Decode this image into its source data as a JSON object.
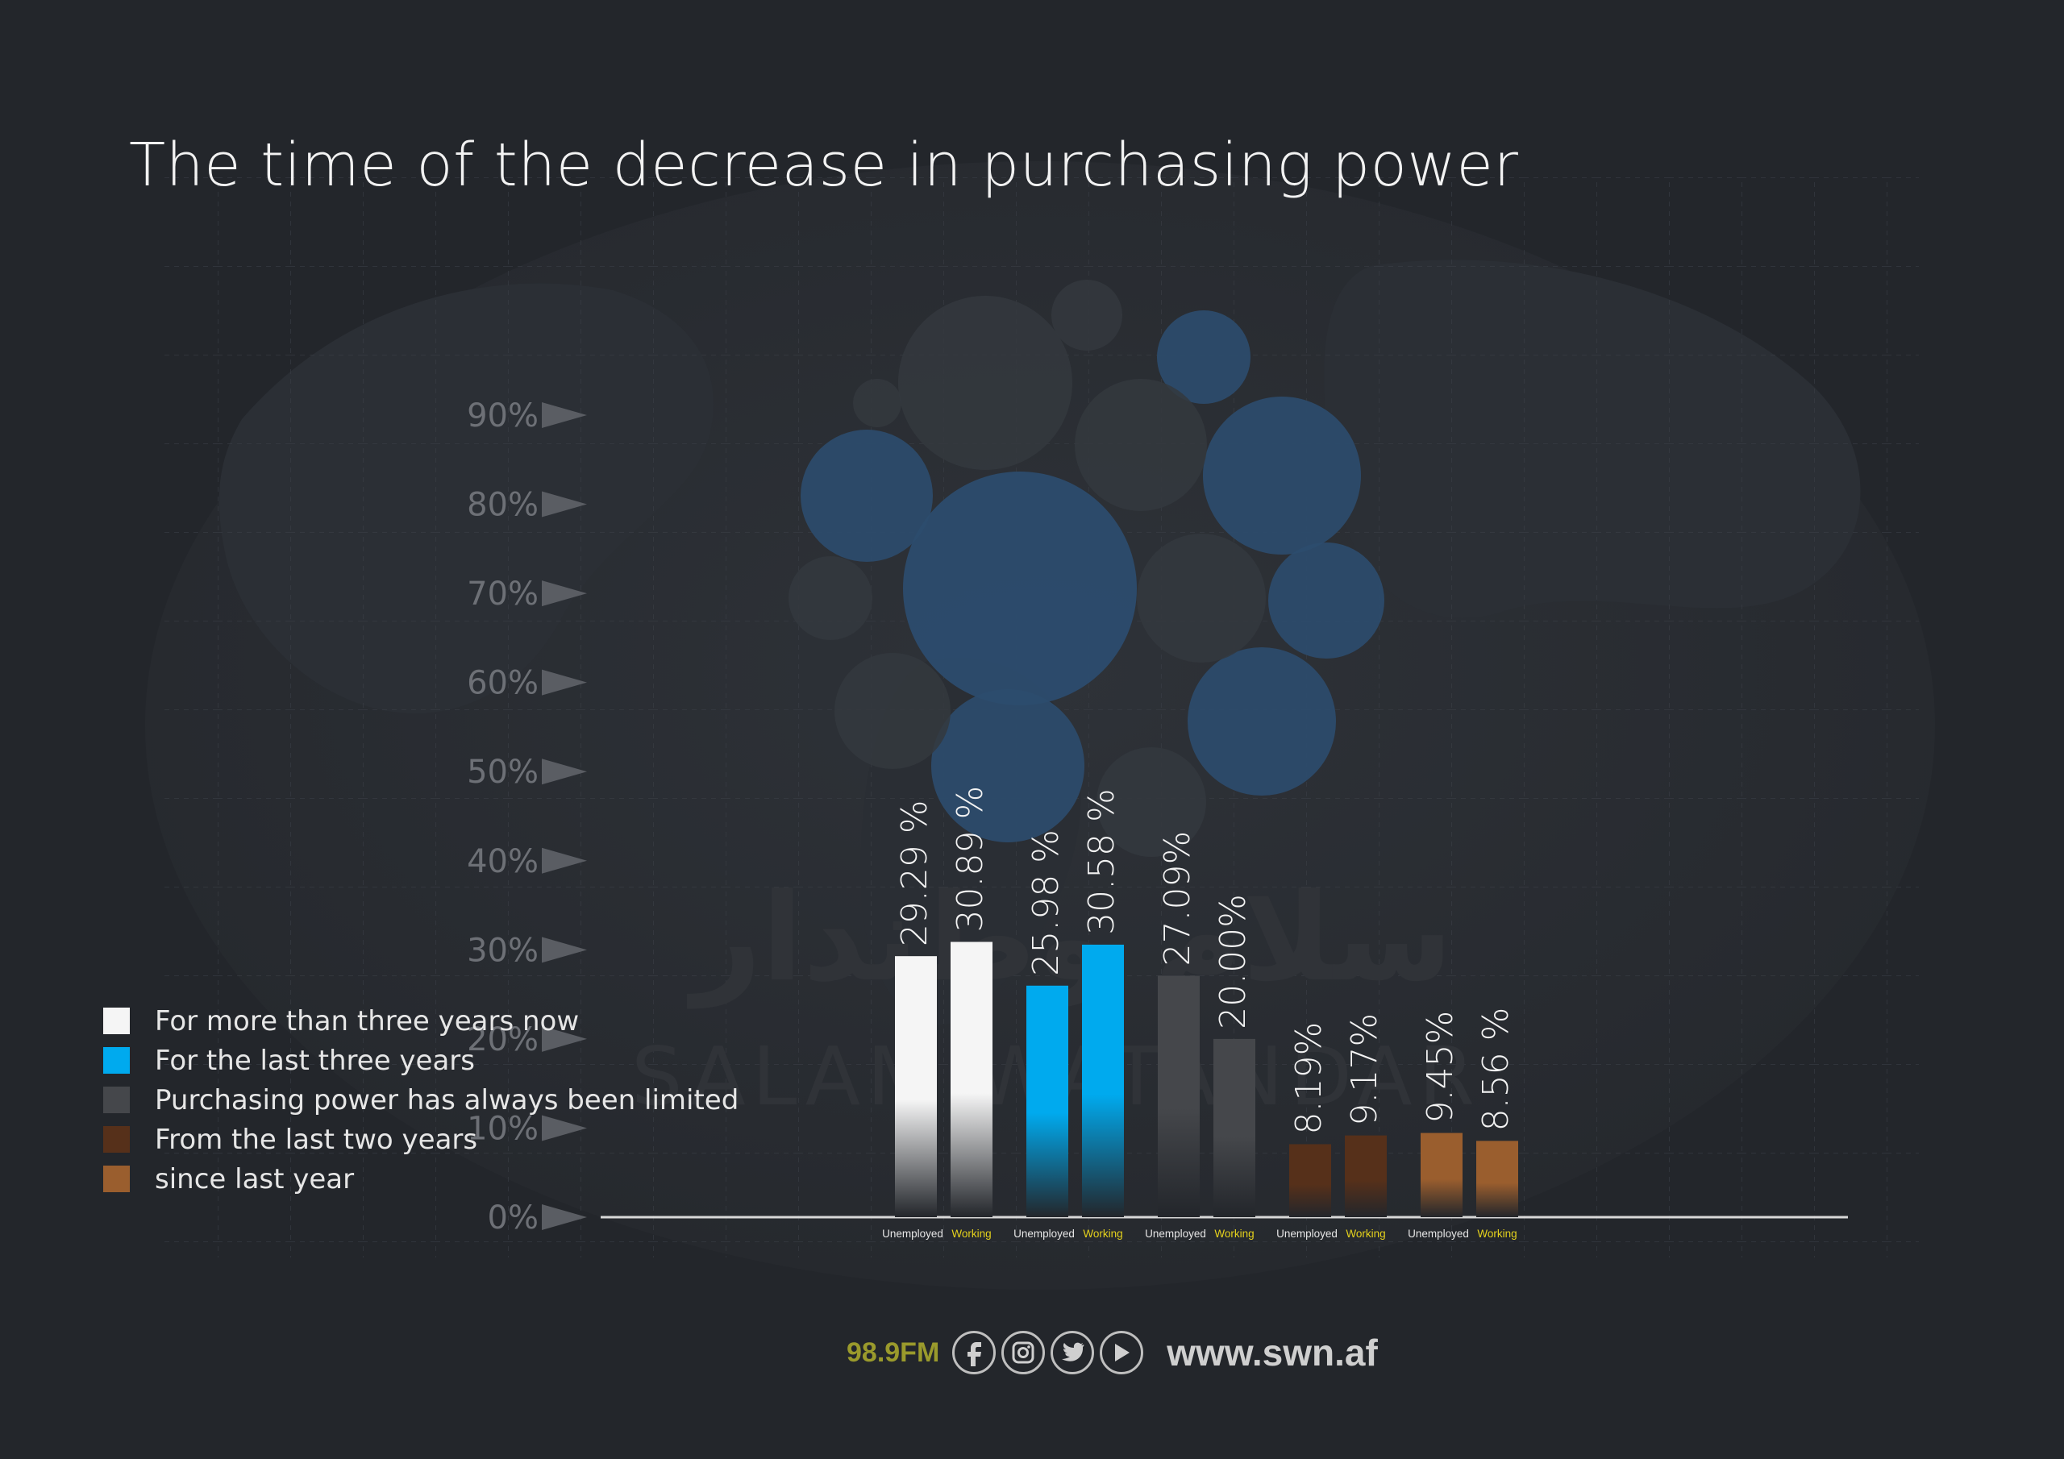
{
  "colors": {
    "background": "#23262b",
    "more_than_three_years": "#f5f5f5",
    "last_three_years": "#00aaee",
    "always_limited": "#45474b",
    "last_two_years": "#56301a",
    "since_last_year": "#9a5e2e",
    "working_label": "#e5d21c"
  },
  "chart_data": {
    "type": "bar",
    "title": "The time of the decrease in purchasing power",
    "ylim": [
      0,
      90
    ],
    "y_ticks": [
      "0%",
      "10%",
      "20%",
      "30%",
      "40%",
      "50%",
      "60%",
      "70%",
      "80%",
      "90%"
    ],
    "groups": [
      "For more than three years now",
      "For the last three years",
      "Purchasing power has always been limited",
      "From the last two years",
      "since last year"
    ],
    "categories": [
      "Unemployed",
      "Working"
    ],
    "series": [
      {
        "name": "For more than three years now",
        "values": [
          29.29,
          30.89
        ],
        "labels": [
          "29.29 %",
          "30.89 %"
        ],
        "color": "#f5f5f5"
      },
      {
        "name": "For the last three years",
        "values": [
          25.98,
          30.58
        ],
        "labels": [
          "25.98 %",
          "30.58 %"
        ],
        "color": "#00aaee"
      },
      {
        "name": "Purchasing power has always been limited",
        "values": [
          27.09,
          20.0
        ],
        "labels": [
          "27.09%",
          "20.00%"
        ],
        "color": "#45474b"
      },
      {
        "name": "From the last two years",
        "values": [
          8.19,
          9.17
        ],
        "labels": [
          "8.19%",
          "9.17%"
        ],
        "color": "#56301a"
      },
      {
        "name": "since last year",
        "values": [
          9.45,
          8.56
        ],
        "labels": [
          "9.45%",
          "8.56 %"
        ],
        "color": "#9a5e2e"
      }
    ],
    "legend_position": "left",
    "grid": true
  },
  "legend": [
    {
      "label": "For more than three years now",
      "color": "#f5f5f5"
    },
    {
      "label": "For the last three years",
      "color": "#00aaee"
    },
    {
      "label": "Purchasing power has always been limited",
      "color": "#45474b"
    },
    {
      "label": "From the last two years",
      "color": "#56301a"
    },
    {
      "label": "since last year",
      "color": "#9a5e2e"
    }
  ],
  "footer": {
    "frequency": "98.9FM",
    "website": "www.swn.af",
    "icons": [
      "facebook-icon",
      "instagram-icon",
      "twitter-icon",
      "youtube-icon"
    ]
  },
  "watermark": {
    "latin": "SALAM WATANDAR",
    "arabic": "سلام وطندار"
  }
}
